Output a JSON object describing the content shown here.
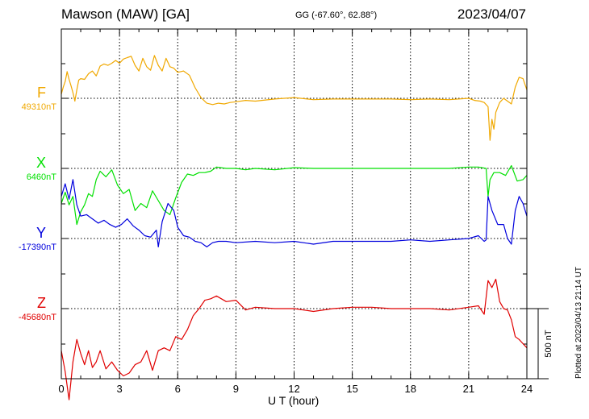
{
  "header": {
    "station": "Mawson (MAW)  [GA]",
    "coords": "GG (-67.60°,  62.88°)",
    "date": "2023/04/07"
  },
  "footer": {
    "plotted": "Plotted at 2023/04/13 21:14 UT"
  },
  "chart_data": {
    "type": "line",
    "xlabel": "U T (hour)",
    "xlim": [
      0,
      24
    ],
    "xticks": [
      0,
      3,
      6,
      9,
      12,
      15,
      18,
      21,
      24
    ],
    "grid": true,
    "scale_bar_label": "500 nT",
    "series": [
      {
        "name": "F",
        "baseline_label": "49310nT",
        "baseline": 49310,
        "color": "#f0a800",
        "x": [
          0,
          0.1,
          0.2,
          0.3,
          0.4,
          0.5,
          0.6,
          0.7,
          0.8,
          0.9,
          1.0,
          1.2,
          1.4,
          1.6,
          1.8,
          2.0,
          2.2,
          2.4,
          2.6,
          2.8,
          3.0,
          3.2,
          3.4,
          3.6,
          3.8,
          4.0,
          4.2,
          4.4,
          4.6,
          4.8,
          5.0,
          5.2,
          5.4,
          5.6,
          5.8,
          6.0,
          6.3,
          6.6,
          6.9,
          7.2,
          7.5,
          7.8,
          8.1,
          8.4,
          8.7,
          9.0,
          9.5,
          10,
          11,
          12,
          13,
          14,
          15,
          16,
          17,
          18,
          19,
          20,
          21,
          21.3,
          21.6,
          21.8,
          22.0,
          22.1,
          22.2,
          22.3,
          22.4,
          22.6,
          22.8,
          23.0,
          23.2,
          23.4,
          23.6,
          23.8,
          24.0
        ],
        "values": [
          30,
          80,
          120,
          190,
          135,
          90,
          40,
          -20,
          60,
          130,
          140,
          135,
          175,
          195,
          160,
          230,
          245,
          235,
          250,
          270,
          250,
          280,
          290,
          300,
          235,
          195,
          285,
          225,
          200,
          305,
          235,
          195,
          285,
          225,
          215,
          185,
          195,
          165,
          75,
          5,
          -35,
          -45,
          -35,
          -40,
          -30,
          -25,
          -15,
          -20,
          -5,
          5,
          -10,
          -5,
          -5,
          -5,
          -5,
          -10,
          -5,
          -10,
          0,
          -15,
          -20,
          -30,
          -60,
          -300,
          -150,
          -220,
          -100,
          -30,
          0,
          -20,
          -40,
          80,
          150,
          140,
          60
        ]
      },
      {
        "name": "X",
        "baseline_label": "6460nT",
        "baseline": 6460,
        "color": "#00e000",
        "x": [
          0,
          0.2,
          0.4,
          0.6,
          0.8,
          1.0,
          1.2,
          1.4,
          1.6,
          1.8,
          2.0,
          2.3,
          2.6,
          2.9,
          3.2,
          3.5,
          3.8,
          4.1,
          4.4,
          4.7,
          5.0,
          5.3,
          5.6,
          5.9,
          6.2,
          6.5,
          6.8,
          7.1,
          7.4,
          7.7,
          8.0,
          8.5,
          9.0,
          9.5,
          10,
          11,
          12,
          13,
          14,
          15,
          16,
          17,
          18,
          19,
          20,
          21,
          21.5,
          21.9,
          22.0,
          22.1,
          22.3,
          22.6,
          22.9,
          23.2,
          23.5,
          23.8,
          24.0
        ],
        "values": [
          -250,
          -170,
          -260,
          -200,
          -400,
          -310,
          -260,
          -180,
          -200,
          -80,
          -20,
          -60,
          -10,
          -120,
          -180,
          -150,
          -300,
          -250,
          -280,
          -160,
          -230,
          -300,
          -330,
          -210,
          -100,
          -40,
          -50,
          -30,
          -30,
          -20,
          10,
          0,
          0,
          -10,
          0,
          -10,
          5,
          0,
          0,
          0,
          0,
          0,
          0,
          0,
          0,
          10,
          10,
          0,
          -200,
          -80,
          -30,
          -30,
          -50,
          20,
          -90,
          -80,
          -50
        ]
      },
      {
        "name": "Y",
        "baseline_label": "-17390nT",
        "baseline": -17390,
        "color": "#0000dd",
        "x": [
          0,
          0.2,
          0.4,
          0.6,
          0.8,
          1.0,
          1.3,
          1.6,
          1.9,
          2.2,
          2.5,
          2.8,
          3.1,
          3.4,
          3.7,
          4.0,
          4.3,
          4.6,
          4.9,
          5.0,
          5.2,
          5.5,
          5.8,
          6.0,
          6.3,
          6.6,
          6.9,
          7.2,
          7.5,
          7.8,
          8.1,
          8.5,
          9.0,
          10,
          11,
          12,
          13,
          14,
          15,
          16,
          17,
          18,
          19,
          20,
          21,
          21.5,
          21.8,
          21.9,
          22.0,
          22.2,
          22.5,
          22.8,
          23.0,
          23.2,
          23.4,
          23.6,
          23.8,
          24.0
        ],
        "values": [
          300,
          390,
          280,
          420,
          240,
          160,
          170,
          140,
          110,
          130,
          100,
          80,
          100,
          140,
          90,
          60,
          20,
          10,
          60,
          -60,
          120,
          250,
          200,
          80,
          20,
          10,
          -20,
          -30,
          -60,
          -30,
          -20,
          -20,
          -30,
          -20,
          -30,
          -20,
          -40,
          -20,
          -20,
          -20,
          -20,
          -10,
          -20,
          -10,
          0,
          20,
          -20,
          -10,
          300,
          200,
          100,
          100,
          0,
          -40,
          200,
          300,
          250,
          160
        ]
      },
      {
        "name": "Z",
        "baseline_label": "-45680nT",
        "baseline": -45680,
        "color": "#e00000",
        "x": [
          0,
          0.2,
          0.4,
          0.6,
          0.8,
          1.0,
          1.2,
          1.4,
          1.6,
          1.8,
          2.0,
          2.3,
          2.6,
          2.9,
          3.2,
          3.5,
          3.8,
          4.1,
          4.4,
          4.7,
          5.0,
          5.3,
          5.6,
          5.9,
          6.2,
          6.5,
          6.8,
          7.1,
          7.4,
          7.7,
          8.0,
          8.5,
          9.0,
          9.5,
          10,
          11,
          12,
          13,
          14,
          15,
          16,
          17,
          18,
          19,
          20,
          21,
          21.5,
          21.8,
          22.0,
          22.2,
          22.4,
          22.6,
          22.8,
          23.0,
          23.2,
          23.4,
          23.6,
          23.8,
          24.0
        ],
        "values": [
          -300,
          -450,
          -650,
          -380,
          -220,
          -320,
          -400,
          -300,
          -420,
          -380,
          -300,
          -430,
          -380,
          -440,
          -480,
          -460,
          -400,
          -380,
          -300,
          -440,
          -300,
          -280,
          -300,
          -200,
          -220,
          -150,
          -50,
          0,
          60,
          70,
          90,
          50,
          60,
          -10,
          10,
          0,
          0,
          -20,
          0,
          10,
          10,
          0,
          0,
          0,
          -10,
          10,
          20,
          -40,
          200,
          150,
          210,
          50,
          0,
          -10,
          -80,
          -200,
          -220,
          -250,
          -280
        ]
      }
    ]
  }
}
